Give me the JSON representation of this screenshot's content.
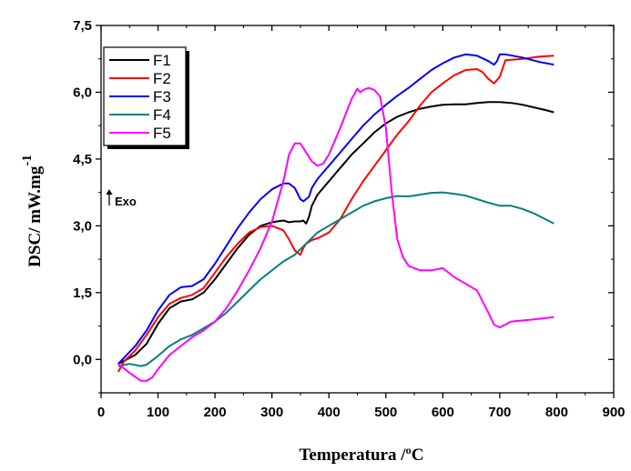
{
  "chart_data": {
    "type": "line",
    "xlabel": "Temperatura /ºC",
    "ylabel_main": "DSC/ mW.mg",
    "ylabel_sup": "-1",
    "xlim": [
      0,
      900
    ],
    "ylim": [
      -0.75,
      7.5
    ],
    "xticks": [
      0,
      100,
      200,
      300,
      400,
      500,
      600,
      700,
      800,
      900
    ],
    "xtick_labels": [
      "0",
      "100",
      "200",
      "300",
      "400",
      "500",
      "600",
      "700",
      "800",
      "900"
    ],
    "yticks": [
      0,
      1.5,
      3.0,
      4.5,
      6.0,
      7.5
    ],
    "ytick_labels": [
      "0,0",
      "1,5",
      "3,0",
      "4,5",
      "6,0",
      "7,5"
    ],
    "annotation": "Exo",
    "legend_position": "top-left",
    "grid": false,
    "series": [
      {
        "name": "F1",
        "color": "#000000",
        "x": [
          30,
          60,
          80,
          100,
          120,
          140,
          160,
          180,
          200,
          220,
          240,
          260,
          280,
          300,
          310,
          320,
          330,
          340,
          350,
          355,
          360,
          365,
          370,
          380,
          400,
          420,
          440,
          460,
          480,
          500,
          520,
          540,
          560,
          580,
          600,
          620,
          640,
          660,
          680,
          700,
          720,
          740,
          760,
          780,
          795
        ],
        "y": [
          -0.1,
          0.1,
          0.35,
          0.8,
          1.15,
          1.3,
          1.35,
          1.5,
          1.8,
          2.15,
          2.5,
          2.8,
          3.0,
          3.08,
          3.1,
          3.12,
          3.08,
          3.1,
          3.1,
          3.12,
          3.05,
          3.2,
          3.45,
          3.7,
          4.0,
          4.3,
          4.6,
          4.85,
          5.1,
          5.3,
          5.45,
          5.55,
          5.63,
          5.68,
          5.72,
          5.73,
          5.73,
          5.76,
          5.78,
          5.78,
          5.76,
          5.72,
          5.66,
          5.6,
          5.55
        ]
      },
      {
        "name": "F2",
        "color": "#ff0000",
        "x": [
          30,
          40,
          60,
          80,
          100,
          120,
          140,
          160,
          180,
          200,
          220,
          240,
          260,
          280,
          300,
          320,
          330,
          340,
          350,
          355,
          360,
          370,
          380,
          400,
          420,
          440,
          460,
          480,
          500,
          520,
          540,
          560,
          580,
          600,
          620,
          640,
          660,
          670,
          680,
          690,
          700,
          710,
          740,
          770,
          795
        ],
        "y": [
          -0.28,
          -0.05,
          0.2,
          0.55,
          0.95,
          1.25,
          1.38,
          1.45,
          1.6,
          1.95,
          2.3,
          2.6,
          2.85,
          2.97,
          3.0,
          2.9,
          2.7,
          2.45,
          2.35,
          2.5,
          2.6,
          2.68,
          2.72,
          2.85,
          3.15,
          3.6,
          4.0,
          4.35,
          4.7,
          5.05,
          5.35,
          5.7,
          6.0,
          6.2,
          6.38,
          6.5,
          6.52,
          6.45,
          6.3,
          6.2,
          6.35,
          6.72,
          6.75,
          6.8,
          6.82
        ]
      },
      {
        "name": "F3",
        "color": "#0000ff",
        "x": [
          30,
          60,
          80,
          100,
          120,
          140,
          160,
          180,
          200,
          220,
          240,
          260,
          280,
          300,
          320,
          330,
          340,
          350,
          355,
          360,
          365,
          370,
          380,
          400,
          420,
          440,
          460,
          480,
          500,
          520,
          540,
          560,
          580,
          600,
          620,
          640,
          660,
          680,
          690,
          695,
          700,
          710,
          740,
          770,
          795
        ],
        "y": [
          -0.1,
          0.3,
          0.65,
          1.1,
          1.45,
          1.62,
          1.65,
          1.8,
          2.15,
          2.55,
          2.95,
          3.3,
          3.6,
          3.82,
          3.95,
          3.95,
          3.85,
          3.6,
          3.55,
          3.6,
          3.65,
          3.85,
          4.05,
          4.35,
          4.65,
          4.95,
          5.25,
          5.5,
          5.72,
          5.92,
          6.1,
          6.3,
          6.5,
          6.65,
          6.78,
          6.85,
          6.82,
          6.7,
          6.62,
          6.7,
          6.85,
          6.85,
          6.78,
          6.68,
          6.62
        ]
      },
      {
        "name": "F4",
        "color": "#008080",
        "x": [
          30,
          50,
          70,
          80,
          100,
          120,
          140,
          160,
          180,
          200,
          220,
          240,
          260,
          280,
          300,
          320,
          340,
          360,
          380,
          400,
          420,
          440,
          460,
          480,
          500,
          520,
          540,
          560,
          580,
          600,
          620,
          640,
          660,
          680,
          700,
          720,
          740,
          760,
          780,
          795
        ],
        "y": [
          -0.15,
          -0.1,
          -0.15,
          -0.12,
          0.08,
          0.3,
          0.45,
          0.55,
          0.7,
          0.85,
          1.05,
          1.3,
          1.55,
          1.8,
          2.0,
          2.2,
          2.35,
          2.6,
          2.85,
          3.0,
          3.15,
          3.3,
          3.45,
          3.55,
          3.62,
          3.67,
          3.66,
          3.7,
          3.74,
          3.75,
          3.72,
          3.68,
          3.6,
          3.52,
          3.45,
          3.45,
          3.38,
          3.28,
          3.15,
          3.05
        ]
      },
      {
        "name": "F5",
        "color": "#ff00ff",
        "x": [
          30,
          50,
          70,
          80,
          90,
          100,
          120,
          140,
          160,
          180,
          200,
          220,
          240,
          260,
          280,
          300,
          320,
          330,
          340,
          350,
          360,
          370,
          380,
          390,
          400,
          420,
          440,
          450,
          455,
          460,
          470,
          480,
          490,
          500,
          510,
          520,
          530,
          540,
          560,
          580,
          600,
          620,
          640,
          660,
          680,
          690,
          700,
          720,
          760,
          795
        ],
        "y": [
          -0.1,
          -0.3,
          -0.48,
          -0.48,
          -0.4,
          -0.22,
          0.1,
          0.3,
          0.5,
          0.65,
          0.85,
          1.15,
          1.55,
          2.0,
          2.5,
          3.1,
          4.0,
          4.6,
          4.85,
          4.85,
          4.65,
          4.45,
          4.35,
          4.4,
          4.6,
          5.2,
          5.85,
          6.08,
          6.0,
          6.05,
          6.1,
          6.05,
          5.9,
          5.2,
          3.8,
          2.7,
          2.3,
          2.1,
          2.0,
          2.0,
          2.05,
          1.85,
          1.7,
          1.55,
          1.05,
          0.78,
          0.72,
          0.85,
          0.9,
          0.95
        ]
      }
    ]
  }
}
